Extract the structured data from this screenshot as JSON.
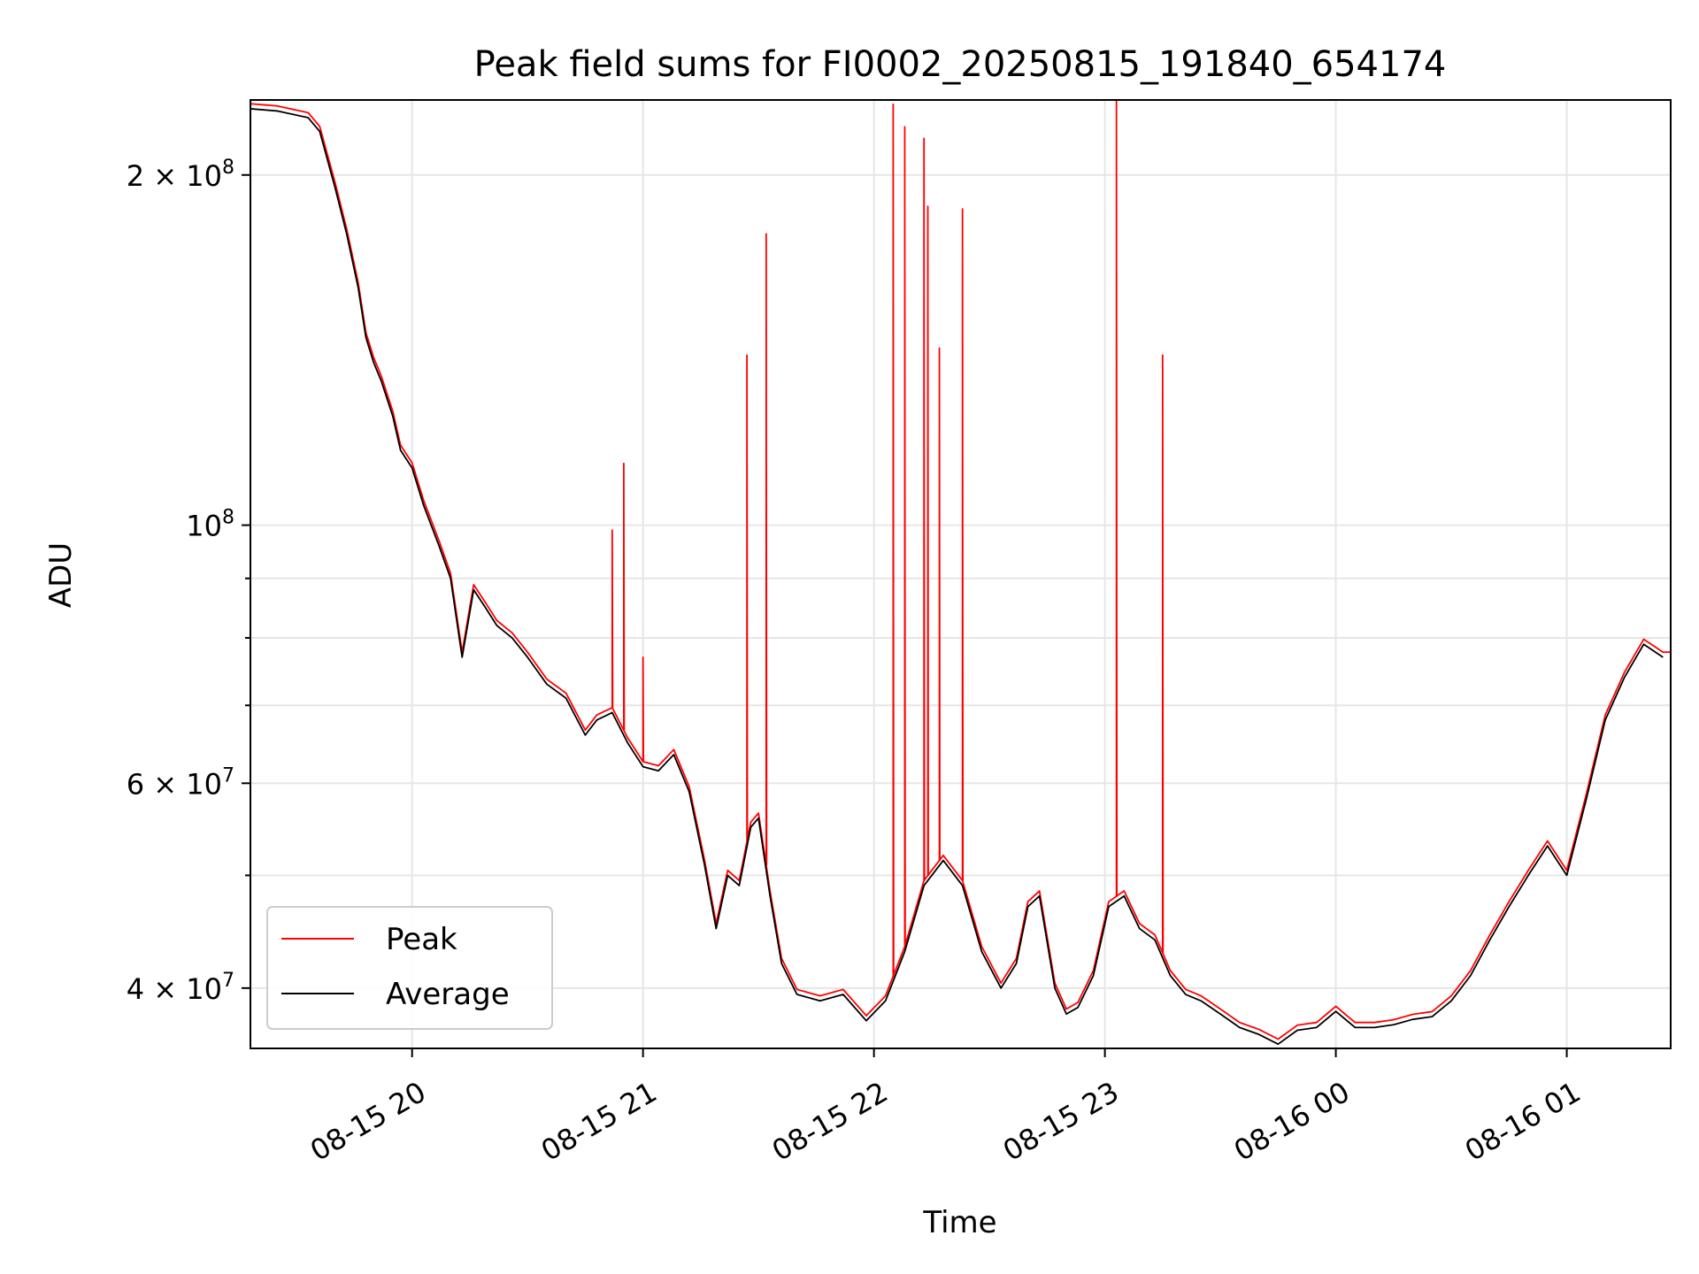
{
  "chart_data": {
    "type": "line",
    "title": "Peak field sums for FI0002_20250815_191840_654174",
    "xlabel": "Time",
    "ylabel": "ADU",
    "x_scale": "time",
    "y_scale": "log",
    "xlim": [
      "2025-08-15 19:18",
      "2025-08-16 01:27"
    ],
    "ylim": [
      35500000,
      232000000
    ],
    "grid": true,
    "legend_position": "lower-left",
    "x_ticks": [
      {
        "value": "2025-08-15 20:00",
        "label": "08-15 20"
      },
      {
        "value": "2025-08-15 21:00",
        "label": "08-15 21"
      },
      {
        "value": "2025-08-15 22:00",
        "label": "08-15 22"
      },
      {
        "value": "2025-08-15 23:00",
        "label": "08-15 23"
      },
      {
        "value": "2025-08-16 00:00",
        "label": "08-16 00"
      },
      {
        "value": "2025-08-16 01:00",
        "label": "08-16 01"
      }
    ],
    "y_ticks": [
      {
        "value": 40000000,
        "base": "4 × 10",
        "exp": "7"
      },
      {
        "value": 60000000,
        "base": "6 × 10",
        "exp": "7"
      },
      {
        "value": 100000000,
        "base": "10",
        "exp": "8"
      },
      {
        "value": 200000000,
        "base": "2 × 10",
        "exp": "8"
      }
    ],
    "y_minor_ticks": [
      50000000,
      70000000,
      80000000,
      90000000
    ],
    "series": [
      {
        "name": "Average",
        "color": "#000000",
        "points": [
          [
            "2025-08-15 19:18",
            228000000
          ],
          [
            "2025-08-15 19:25",
            227000000
          ],
          [
            "2025-08-15 19:33",
            224000000
          ],
          [
            "2025-08-15 19:36",
            218000000
          ],
          [
            "2025-08-15 19:40",
            195000000
          ],
          [
            "2025-08-15 19:43",
            178000000
          ],
          [
            "2025-08-15 19:46",
            160000000
          ],
          [
            "2025-08-15 19:48",
            145000000
          ],
          [
            "2025-08-15 19:50",
            138000000
          ],
          [
            "2025-08-15 19:52",
            133000000
          ],
          [
            "2025-08-15 19:55",
            124000000
          ],
          [
            "2025-08-15 19:57",
            116000000
          ],
          [
            "2025-08-15 20:00",
            112000000
          ],
          [
            "2025-08-15 20:03",
            104000000
          ],
          [
            "2025-08-15 20:07",
            96000000
          ],
          [
            "2025-08-15 20:10",
            90000000
          ],
          [
            "2025-08-15 20:13",
            77000000
          ],
          [
            "2025-08-15 20:16",
            88000000
          ],
          [
            "2025-08-15 20:19",
            85000000
          ],
          [
            "2025-08-15 20:22",
            82000000
          ],
          [
            "2025-08-15 20:26",
            80000000
          ],
          [
            "2025-08-15 20:30",
            77000000
          ],
          [
            "2025-08-15 20:35",
            73000000
          ],
          [
            "2025-08-15 20:40",
            71000000
          ],
          [
            "2025-08-15 20:45",
            66000000
          ],
          [
            "2025-08-15 20:48",
            68000000
          ],
          [
            "2025-08-15 20:52",
            69000000
          ],
          [
            "2025-08-15 20:56",
            65000000
          ],
          [
            "2025-08-15 21:00",
            62000000
          ],
          [
            "2025-08-15 21:04",
            61500000
          ],
          [
            "2025-08-15 21:08",
            63500000
          ],
          [
            "2025-08-15 21:12",
            59000000
          ],
          [
            "2025-08-15 21:16",
            51000000
          ],
          [
            "2025-08-15 21:19",
            45000000
          ],
          [
            "2025-08-15 21:22",
            50000000
          ],
          [
            "2025-08-15 21:25",
            49000000
          ],
          [
            "2025-08-15 21:28",
            55000000
          ],
          [
            "2025-08-15 21:30",
            56000000
          ],
          [
            "2025-08-15 21:33",
            48000000
          ],
          [
            "2025-08-15 21:36",
            42000000
          ],
          [
            "2025-08-15 21:40",
            39500000
          ],
          [
            "2025-08-15 21:46",
            39000000
          ],
          [
            "2025-08-15 21:52",
            39500000
          ],
          [
            "2025-08-15 21:58",
            37500000
          ],
          [
            "2025-08-15 22:03",
            39000000
          ],
          [
            "2025-08-15 22:08",
            43000000
          ],
          [
            "2025-08-15 22:13",
            49000000
          ],
          [
            "2025-08-15 22:18",
            51500000
          ],
          [
            "2025-08-15 22:23",
            49000000
          ],
          [
            "2025-08-15 22:28",
            43000000
          ],
          [
            "2025-08-15 22:33",
            40000000
          ],
          [
            "2025-08-15 22:37",
            42000000
          ],
          [
            "2025-08-15 22:40",
            47000000
          ],
          [
            "2025-08-15 22:43",
            48000000
          ],
          [
            "2025-08-15 22:47",
            40000000
          ],
          [
            "2025-08-15 22:50",
            38000000
          ],
          [
            "2025-08-15 22:53",
            38500000
          ],
          [
            "2025-08-15 22:57",
            41000000
          ],
          [
            "2025-08-15 23:01",
            47000000
          ],
          [
            "2025-08-15 23:05",
            48000000
          ],
          [
            "2025-08-15 23:09",
            45000000
          ],
          [
            "2025-08-15 23:13",
            44000000
          ],
          [
            "2025-08-15 23:17",
            41000000
          ],
          [
            "2025-08-15 23:21",
            39500000
          ],
          [
            "2025-08-15 23:25",
            39000000
          ],
          [
            "2025-08-15 23:30",
            38000000
          ],
          [
            "2025-08-15 23:35",
            37000000
          ],
          [
            "2025-08-15 23:40",
            36500000
          ],
          [
            "2025-08-15 23:45",
            35800000
          ],
          [
            "2025-08-15 23:50",
            36800000
          ],
          [
            "2025-08-15 23:55",
            37000000
          ],
          [
            "2025-08-16 00:00",
            38200000
          ],
          [
            "2025-08-16 00:05",
            37000000
          ],
          [
            "2025-08-16 00:10",
            37000000
          ],
          [
            "2025-08-16 00:15",
            37200000
          ],
          [
            "2025-08-16 00:20",
            37600000
          ],
          [
            "2025-08-16 00:25",
            37800000
          ],
          [
            "2025-08-16 00:30",
            39000000
          ],
          [
            "2025-08-16 00:35",
            41000000
          ],
          [
            "2025-08-16 00:40",
            44000000
          ],
          [
            "2025-08-16 00:45",
            47000000
          ],
          [
            "2025-08-16 00:50",
            50000000
          ],
          [
            "2025-08-16 00:55",
            53000000
          ],
          [
            "2025-08-16 01:00",
            50000000
          ],
          [
            "2025-08-16 01:05",
            58000000
          ],
          [
            "2025-08-16 01:10",
            68000000
          ],
          [
            "2025-08-16 01:15",
            74000000
          ],
          [
            "2025-08-16 01:20",
            79000000
          ],
          [
            "2025-08-16 01:25",
            77000000
          ]
        ]
      },
      {
        "name": "Peak",
        "color": "#ff0000",
        "spikes": [
          [
            "2025-08-15 20:52",
            99000000
          ],
          [
            "2025-08-15 20:55",
            113000000
          ],
          [
            "2025-08-15 21:00",
            77000000
          ],
          [
            "2025-08-15 21:27",
            140000000
          ],
          [
            "2025-08-15 21:32",
            178000000
          ],
          [
            "2025-08-15 22:05",
            230000000
          ],
          [
            "2025-08-15 22:08",
            220000000
          ],
          [
            "2025-08-15 22:13",
            215000000
          ],
          [
            "2025-08-15 22:14",
            188000000
          ],
          [
            "2025-08-15 22:17",
            142000000
          ],
          [
            "2025-08-15 22:23",
            187000000
          ],
          [
            "2025-08-15 23:03",
            232000000
          ],
          [
            "2025-08-15 23:15",
            140000000
          ]
        ]
      }
    ]
  }
}
